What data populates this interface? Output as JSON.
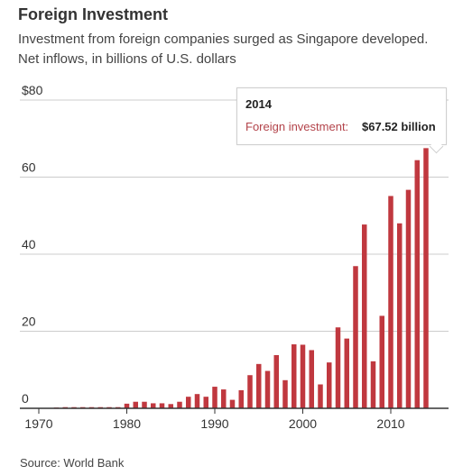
{
  "title": "Foreign Investment",
  "subtitle": "Investment from foreign companies surged as Singapore developed. Net inflows, in billions of U.S. dollars",
  "source": "Source: World Bank",
  "tooltip": {
    "year": "2014",
    "label": "Foreign investment:",
    "value": "$67.52 billion"
  },
  "colors": {
    "bar": "#c0383f",
    "grid": "#cccccc",
    "axis": "#333333",
    "tooltip_label": "#b3434a"
  },
  "chart_data": {
    "type": "bar",
    "title": "Foreign Investment",
    "ylabel": "",
    "xlabel": "",
    "ylim": [
      0,
      80
    ],
    "xlim": [
      1970,
      2014
    ],
    "yticks": [
      0,
      20,
      40,
      60,
      80
    ],
    "ytick_labels": [
      "0",
      "20",
      "40",
      "60",
      "$80"
    ],
    "xticks": [
      1970,
      1980,
      1990,
      2000,
      2010
    ],
    "xtick_labels": [
      "1970",
      "1980",
      "1990",
      "2000",
      "2010"
    ],
    "grid": true,
    "series": [
      {
        "x": [
          1970,
          1971,
          1972,
          1973,
          1974,
          1975,
          1976,
          1977,
          1978,
          1979,
          1980,
          1981,
          1982,
          1983,
          1984,
          1985,
          1986,
          1987,
          1988,
          1989,
          1990,
          1991,
          1992,
          1993,
          1994,
          1995,
          1996,
          1997,
          1998,
          1999,
          2000,
          2001,
          2002,
          2003,
          2004,
          2005,
          2006,
          2007,
          2008,
          2009,
          2010,
          2011,
          2012,
          2013,
          2014
        ],
        "values": [
          0.1,
          0.1,
          0.2,
          0.3,
          0.3,
          0.3,
          0.3,
          0.3,
          0.3,
          0.3,
          1.2,
          1.7,
          1.7,
          1.3,
          1.3,
          1.1,
          1.7,
          3.0,
          3.7,
          3.0,
          5.6,
          4.9,
          2.2,
          4.7,
          8.6,
          11.5,
          9.7,
          13.8,
          7.3,
          16.6,
          16.5,
          15.1,
          6.2,
          11.9,
          21.0,
          18.1,
          36.9,
          47.7,
          12.2,
          24.0,
          55.1,
          48.0,
          56.7,
          64.4,
          67.52
        ]
      }
    ]
  }
}
